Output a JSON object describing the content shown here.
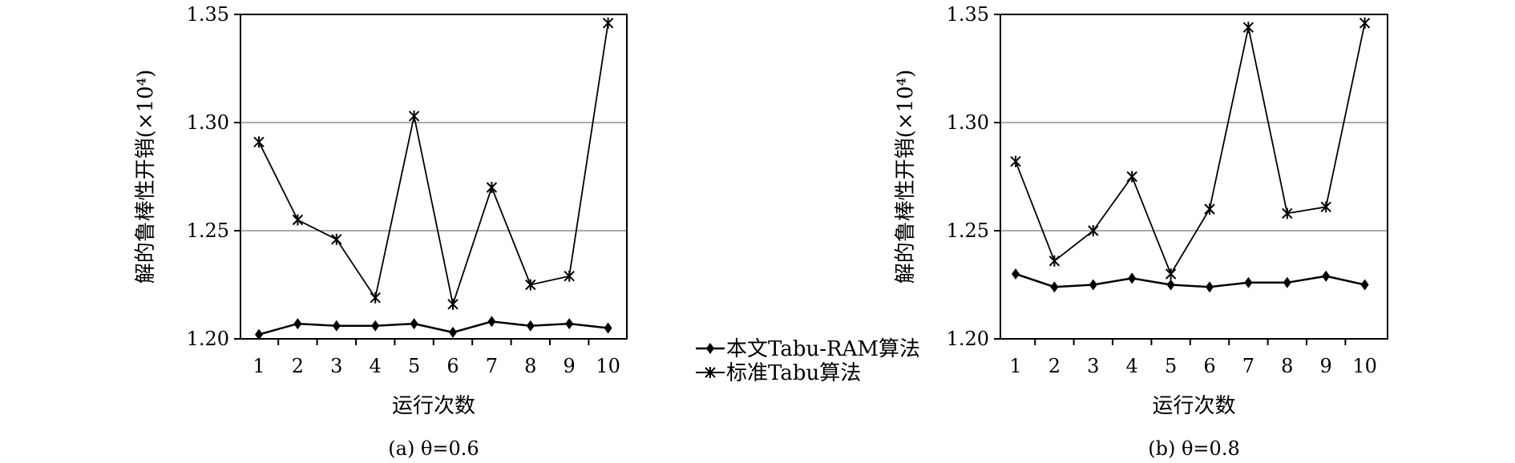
{
  "chart_data": [
    {
      "type": "line",
      "caption": "(a) θ=0.6",
      "xlabel": "运行次数",
      "ylabel": "解的鲁棒性开销(×10⁴)",
      "categories": [
        "1",
        "2",
        "3",
        "4",
        "5",
        "6",
        "7",
        "8",
        "9",
        "10"
      ],
      "ylim": [
        1.2,
        1.35
      ],
      "yticks": [
        "1.20",
        "1.25",
        "1.30",
        "1.35"
      ],
      "grid": "horizontal",
      "series": [
        {
          "name": "本文Tabu-RAM算法",
          "marker": "diamond",
          "values": [
            1.202,
            1.207,
            1.206,
            1.206,
            1.207,
            1.203,
            1.208,
            1.206,
            1.207,
            1.205
          ]
        },
        {
          "name": "标准Tabu算法",
          "marker": "star",
          "values": [
            1.291,
            1.255,
            1.246,
            1.219,
            1.303,
            1.216,
            1.27,
            1.225,
            1.229,
            1.346
          ]
        }
      ]
    },
    {
      "type": "line",
      "caption": "(b) θ=0.8",
      "xlabel": "运行次数",
      "ylabel": "解的鲁棒性开销(×10⁴)",
      "categories": [
        "1",
        "2",
        "3",
        "4",
        "5",
        "6",
        "7",
        "8",
        "9",
        "10"
      ],
      "ylim": [
        1.2,
        1.35
      ],
      "yticks": [
        "1.20",
        "1.25",
        "1.30",
        "1.35"
      ],
      "grid": "horizontal",
      "series": [
        {
          "name": "本文Tabu-RAM算法",
          "marker": "diamond",
          "values": [
            1.23,
            1.224,
            1.225,
            1.228,
            1.225,
            1.224,
            1.226,
            1.226,
            1.229,
            1.225
          ]
        },
        {
          "name": "标准Tabu算法",
          "marker": "star",
          "values": [
            1.282,
            1.236,
            1.25,
            1.275,
            1.23,
            1.26,
            1.344,
            1.258,
            1.261,
            1.346
          ]
        }
      ]
    }
  ],
  "legend": {
    "items": [
      {
        "label": "本文Tabu-RAM算法",
        "marker": "diamond"
      },
      {
        "label": "标准Tabu算法",
        "marker": "star"
      }
    ]
  }
}
